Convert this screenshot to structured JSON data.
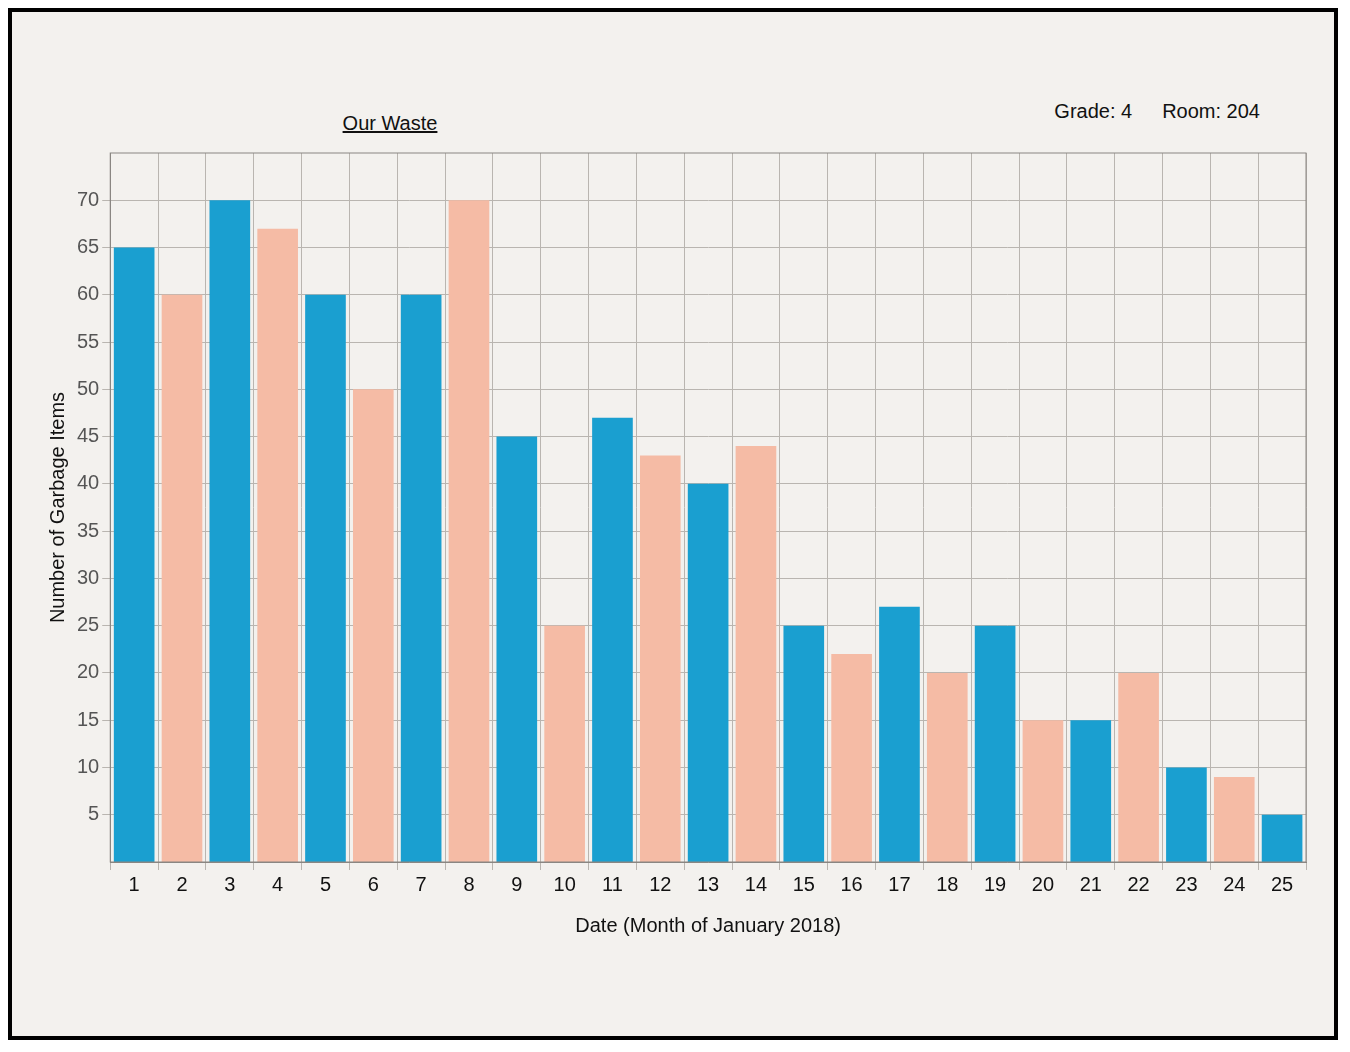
{
  "chart_data": {
    "type": "bar",
    "title": "Our Waste",
    "annotations": [
      "Grade: 4",
      "Room: 204"
    ],
    "x_label": "Date (Month of January 2018)",
    "y_label": "Number of Garbage Items",
    "categories": [
      "1",
      "2",
      "3",
      "4",
      "5",
      "6",
      "7",
      "8",
      "9",
      "10",
      "11",
      "12",
      "13",
      "14",
      "15",
      "16",
      "17",
      "18",
      "19",
      "20",
      "21",
      "22",
      "23",
      "24",
      "25"
    ],
    "values": [
      65,
      60,
      70,
      67,
      60,
      50,
      60,
      70,
      45,
      25,
      47,
      43,
      40,
      44,
      25,
      22,
      27,
      20,
      25,
      15,
      15,
      20,
      10,
      9,
      5
    ],
    "colors": [
      "#1a9fd0",
      "#f5bba5",
      "#1a9fd0",
      "#f5bba5",
      "#1a9fd0",
      "#f5bba5",
      "#1a9fd0",
      "#f5bba5",
      "#1a9fd0",
      "#f5bba5",
      "#1a9fd0",
      "#f5bba5",
      "#1a9fd0",
      "#f5bba5",
      "#1a9fd0",
      "#f5bba5",
      "#1a9fd0",
      "#f5bba5",
      "#1a9fd0",
      "#f5bba5",
      "#1a9fd0",
      "#f5bba5",
      "#1a9fd0",
      "#f5bba5",
      "#1a9fd0"
    ],
    "ylim": [
      0,
      75
    ],
    "yticks": [
      5,
      10,
      15,
      20,
      25,
      30,
      35,
      40,
      45,
      50,
      55,
      60,
      65,
      70
    ],
    "grid": true
  }
}
